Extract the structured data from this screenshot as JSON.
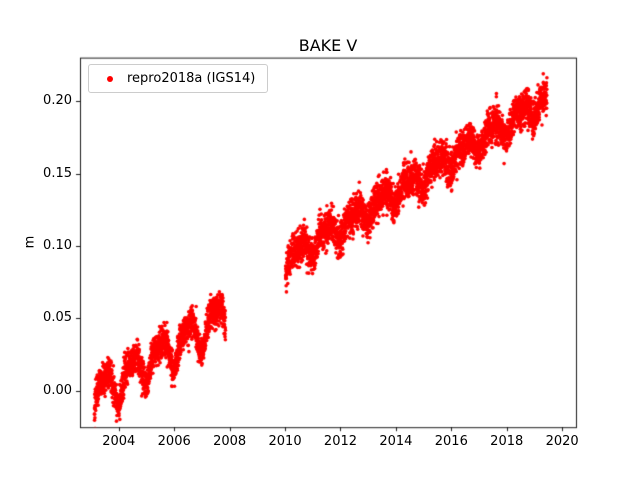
{
  "chart_data": {
    "type": "scatter",
    "title": "BAKE V",
    "xlabel": "",
    "ylabel": "m",
    "xlim": [
      2002.6,
      2020.5
    ],
    "ylim": [
      -0.025,
      0.23
    ],
    "grid": false,
    "xticks": [
      2004,
      2006,
      2008,
      2010,
      2012,
      2014,
      2016,
      2018,
      2020
    ],
    "xtick_labels": [
      "2004",
      "2006",
      "2008",
      "2010",
      "2012",
      "2014",
      "2016",
      "2018",
      "2020"
    ],
    "yticks": [
      0.0,
      0.05,
      0.1,
      0.15,
      0.2
    ],
    "ytick_labels": [
      "0.00",
      "0.05",
      "0.10",
      "0.15",
      "0.20"
    ],
    "legend": {
      "location": "upper left",
      "label": "repro2018a (IGS14)",
      "marker_color": "#ff0000"
    },
    "series": [
      {
        "name": "repro2018a (IGS14)",
        "color": "#ff0000",
        "marker": "dot",
        "marker_radius": 1.8,
        "generator": {
          "seed": 42,
          "points_per_year": 365,
          "trend": {
            "ref_year": 2003,
            "intercept": -0.005,
            "slope_m_per_year": 0.0118
          },
          "seasonal_phase": 0.25,
          "segments": [
            {
              "start": 2003.12,
              "end": 2007.85,
              "offset": 0.0,
              "seasonal_amp": 0.011,
              "seasonal2_amp": 0.004,
              "noise_sd": 0.0055
            },
            {
              "start": 2010.02,
              "end": 2019.45,
              "offset": 0.012,
              "seasonal_amp": 0.006,
              "seasonal2_amp": 0.003,
              "noise_sd": 0.006
            }
          ]
        }
      }
    ]
  }
}
